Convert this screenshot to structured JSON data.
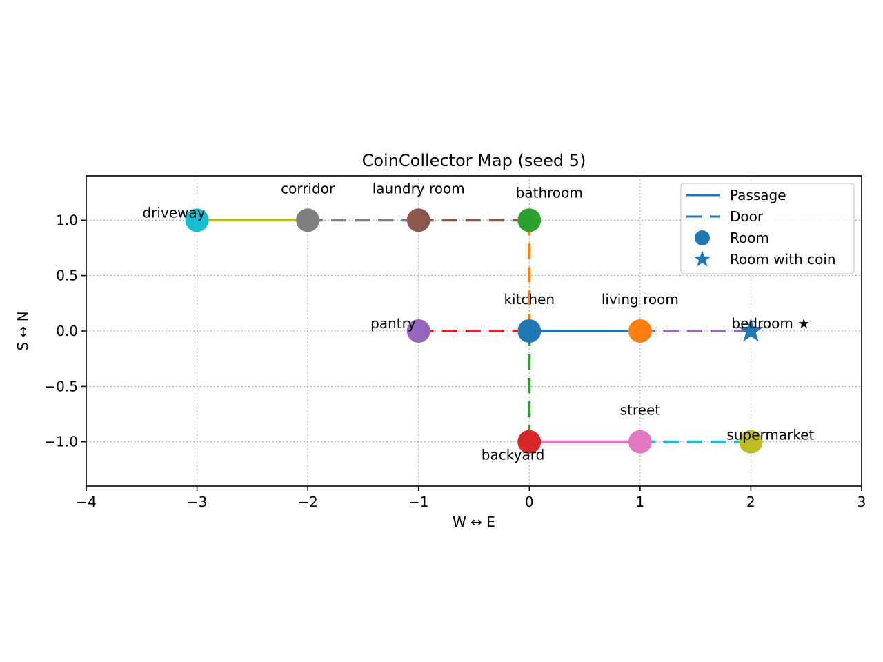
{
  "chart_data": {
    "type": "scatter",
    "title": "CoinCollector Map (seed 5)",
    "xlabel": "W ↔ E",
    "ylabel": "S ↔ N",
    "xlim": [
      -4,
      3
    ],
    "ylim": [
      -1.4,
      1.4
    ],
    "x_ticks": [
      -4,
      -3,
      -2,
      -1,
      0,
      1,
      2,
      3
    ],
    "x_tick_labels": [
      "−4",
      "−3",
      "−2",
      "−1",
      "0",
      "1",
      "2",
      "3"
    ],
    "y_ticks": [
      1.0,
      0.5,
      0.0,
      -0.5,
      -1.0
    ],
    "y_tick_labels": [
      "1.0",
      "0.5",
      "0.0",
      "−0.5",
      "−1.0"
    ],
    "grid": true,
    "legend_position": "top-right",
    "legend": [
      {
        "label": "Passage",
        "kind": "line"
      },
      {
        "label": "Door",
        "kind": "dash"
      },
      {
        "label": "Room",
        "kind": "circle"
      },
      {
        "label": "Room with coin",
        "kind": "star"
      }
    ],
    "rooms": [
      {
        "label": "driveway",
        "x": -3,
        "y": 1,
        "color": "#17becf",
        "coin": false,
        "label_pos": "above-left"
      },
      {
        "label": "corridor",
        "x": -2,
        "y": 1,
        "color": "#7f7f7f",
        "coin": false,
        "label_pos": "above"
      },
      {
        "label": "laundry room",
        "x": -1,
        "y": 1,
        "color": "#8c564b",
        "coin": false,
        "label_pos": "above"
      },
      {
        "label": "bathroom",
        "x": 0,
        "y": 1,
        "color": "#2ca02c",
        "coin": false,
        "label_pos": "above-right"
      },
      {
        "label": "pantry",
        "x": -1,
        "y": 0,
        "color": "#9467bd",
        "coin": false,
        "label_pos": "above-left"
      },
      {
        "label": "kitchen",
        "x": 0,
        "y": 0,
        "color": "#1f77b4",
        "coin": false,
        "label_pos": "above"
      },
      {
        "label": "living room",
        "x": 1,
        "y": 0,
        "color": "#ff7f0e",
        "coin": false,
        "label_pos": "above"
      },
      {
        "label": "bedroom ★",
        "x": 2,
        "y": 0,
        "color": "#1f77b4",
        "coin": true,
        "label_pos": "above-right"
      },
      {
        "label": "backyard",
        "x": 0,
        "y": -1,
        "color": "#d62728",
        "coin": false,
        "label_pos": "below-left"
      },
      {
        "label": "street",
        "x": 1,
        "y": -1,
        "color": "#e377c2",
        "coin": false,
        "label_pos": "above"
      },
      {
        "label": "supermarket",
        "x": 2,
        "y": -1,
        "color": "#bcbd22",
        "coin": false,
        "label_pos": "above-right"
      }
    ],
    "connections": [
      {
        "from": [
          -3,
          1
        ],
        "to": [
          -2,
          1
        ],
        "kind": "passage",
        "color": "#bcbd22"
      },
      {
        "from": [
          -2,
          1
        ],
        "to": [
          -1,
          1
        ],
        "kind": "door",
        "color": "#7f7f7f"
      },
      {
        "from": [
          -1,
          1
        ],
        "to": [
          0,
          1
        ],
        "kind": "door",
        "color": "#8c564b"
      },
      {
        "from": [
          0,
          1
        ],
        "to": [
          0,
          0
        ],
        "kind": "door",
        "color": "#ff7f0e"
      },
      {
        "from": [
          -1,
          0
        ],
        "to": [
          0,
          0
        ],
        "kind": "door",
        "color": "#d62728"
      },
      {
        "from": [
          0,
          0
        ],
        "to": [
          1,
          0
        ],
        "kind": "passage",
        "color": "#1f77b4"
      },
      {
        "from": [
          1,
          0
        ],
        "to": [
          2,
          0
        ],
        "kind": "door",
        "color": "#9467bd"
      },
      {
        "from": [
          0,
          0
        ],
        "to": [
          0,
          -1
        ],
        "kind": "door",
        "color": "#2ca02c"
      },
      {
        "from": [
          0,
          -1
        ],
        "to": [
          1,
          -1
        ],
        "kind": "passage",
        "color": "#e377c2"
      },
      {
        "from": [
          1,
          -1
        ],
        "to": [
          2,
          -1
        ],
        "kind": "door",
        "color": "#17becf"
      }
    ]
  }
}
